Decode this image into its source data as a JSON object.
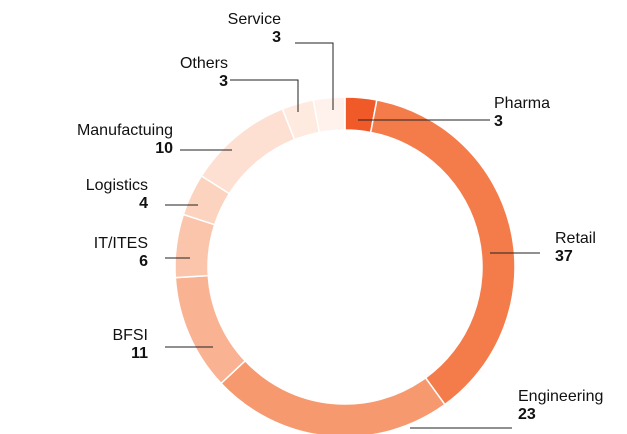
{
  "chart_data": {
    "type": "donut",
    "categories": [
      "Pharma",
      "Retail",
      "Engineering",
      "BFSI",
      "IT/ITES",
      "Logistics",
      "Manufactuing",
      "Others",
      "Service"
    ],
    "values": [
      3,
      37,
      23,
      11,
      6,
      4,
      10,
      3,
      3
    ],
    "colors": [
      "#f05a28",
      "#f47c4a",
      "#f7996e",
      "#f9b292",
      "#fbc5ab",
      "#fcd3bf",
      "#fde0d2",
      "#feeadf",
      "#fff2ec"
    ]
  }
}
